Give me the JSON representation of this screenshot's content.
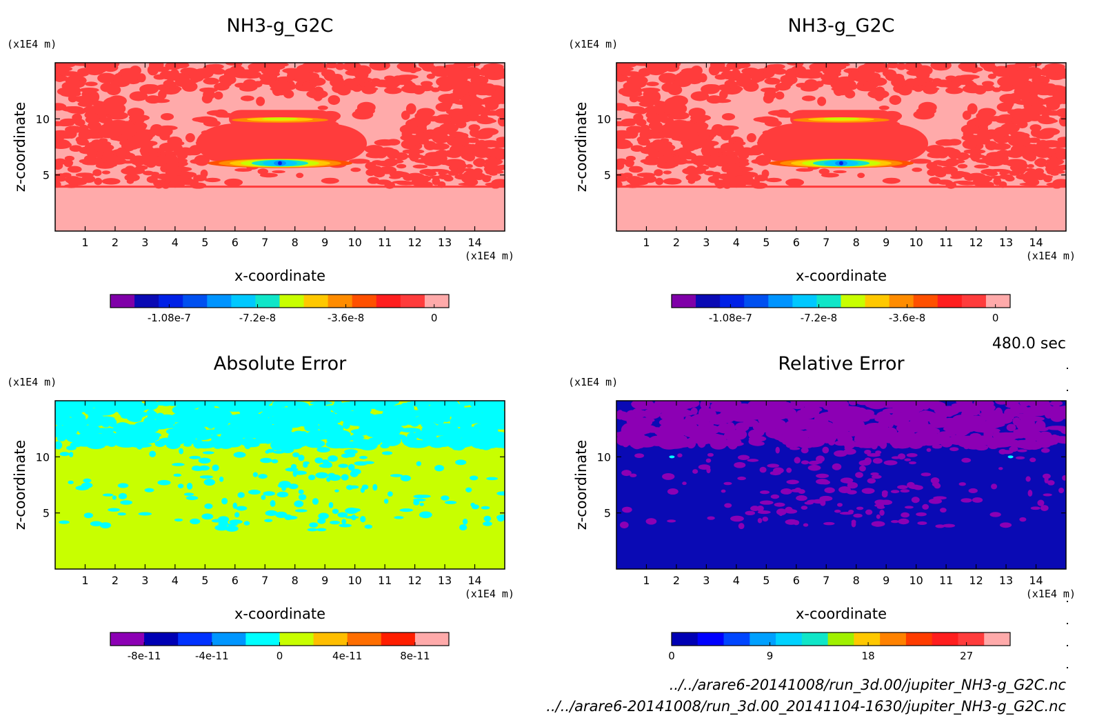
{
  "time_label": "480.0 sec",
  "files": [
    "../../arare6-20141008/run_3d.00/jupiter_NH3-g_G2C.nc",
    "../../arare6-20141008/run_3d.00_20141104-1630/jupiter_NH3-g_G2C.nc"
  ],
  "colors": {
    "ramp": [
      "#7f00a8",
      "#0000b4",
      "#0021e6",
      "#0078ff",
      "#00c3ff",
      "#10e6c8",
      "#c8ff00",
      "#ffc800",
      "#ff7d00",
      "#ff3c00",
      "#ff0f20",
      "#ff3c3c",
      "#ffa8a8"
    ]
  },
  "chart_data": [
    {
      "type": "heatmap",
      "title": "NH3-g_G2C",
      "xlabel": "x-coordinate",
      "ylabel": "z-coordinate",
      "x_unit": "(x1E4 m)",
      "y_unit": "(x1E4 m)",
      "xlim": [
        0,
        15
      ],
      "ylim": [
        0,
        15
      ],
      "x_ticks": [
        "1",
        "2",
        "3",
        "4",
        "5",
        "6",
        "7",
        "8",
        "9",
        "10",
        "11",
        "12",
        "13",
        "14"
      ],
      "y_ticks": [
        "5",
        "10"
      ],
      "colorbar": {
        "min": -1.32e-07,
        "max": 6e-09,
        "labels": [
          {
            "value": -1.08e-07,
            "text": "-1.08e-7"
          },
          {
            "value": -7.2e-08,
            "text": "-7.2e-8"
          },
          {
            "value": -3.6e-08,
            "text": "-3.6e-8"
          },
          {
            "value": 0,
            "text": "0"
          }
        ],
        "colors": [
          "#7f00a8",
          "#0a0ab4",
          "#0021e6",
          "#0050f0",
          "#0094ff",
          "#00c8ff",
          "#10e6c8",
          "#c8ff00",
          "#ffc800",
          "#ff8c00",
          "#ff5000",
          "#ff1e1e",
          "#ff3c3c",
          "#ffaaaa"
        ]
      },
      "field": "anomaly"
    },
    {
      "type": "heatmap",
      "title": "NH3-g_G2C",
      "xlabel": "x-coordinate",
      "ylabel": "z-coordinate",
      "x_unit": "(x1E4 m)",
      "y_unit": "(x1E4 m)",
      "xlim": [
        0,
        15
      ],
      "ylim": [
        0,
        15
      ],
      "x_ticks": [
        "1",
        "2",
        "3",
        "4",
        "5",
        "6",
        "7",
        "8",
        "9",
        "10",
        "11",
        "12",
        "13",
        "14"
      ],
      "y_ticks": [
        "5",
        "10"
      ],
      "colorbar": {
        "min": -1.32e-07,
        "max": 6e-09,
        "labels": [
          {
            "value": -1.08e-07,
            "text": "-1.08e-7"
          },
          {
            "value": -7.2e-08,
            "text": "-7.2e-8"
          },
          {
            "value": -3.6e-08,
            "text": "-3.6e-8"
          },
          {
            "value": 0,
            "text": "0"
          }
        ],
        "colors": [
          "#7f00a8",
          "#0a0ab4",
          "#0021e6",
          "#0050f0",
          "#0094ff",
          "#00c8ff",
          "#10e6c8",
          "#c8ff00",
          "#ffc800",
          "#ff8c00",
          "#ff5000",
          "#ff1e1e",
          "#ff3c3c",
          "#ffaaaa"
        ]
      },
      "field": "anomaly"
    },
    {
      "type": "heatmap",
      "title": "Absolute Error",
      "xlabel": "x-coordinate",
      "ylabel": "z-coordinate",
      "x_unit": "(x1E4 m)",
      "y_unit": "(x1E4 m)",
      "xlim": [
        0,
        15
      ],
      "ylim": [
        0,
        15
      ],
      "x_ticks": [
        "1",
        "2",
        "3",
        "4",
        "5",
        "6",
        "7",
        "8",
        "9",
        "10",
        "11",
        "12",
        "13",
        "14"
      ],
      "y_ticks": [
        "5",
        "10"
      ],
      "colorbar": {
        "min": -1e-10,
        "max": 1e-10,
        "labels": [
          {
            "value": -8e-11,
            "text": "-8e-11"
          },
          {
            "value": -4e-11,
            "text": "-4e-11"
          },
          {
            "value": 0,
            "text": "0"
          },
          {
            "value": 4e-11,
            "text": "4e-11"
          },
          {
            "value": 8e-11,
            "text": "8e-11"
          }
        ],
        "colors": [
          "#8c00b4",
          "#0000b4",
          "#0032ff",
          "#0096ff",
          "#00ffff",
          "#c8ff00",
          "#ffbe00",
          "#ff6e00",
          "#ff1e00",
          "#ffaaaa"
        ]
      },
      "field": "abs"
    },
    {
      "type": "heatmap",
      "title": "Relative Error",
      "xlabel": "x-coordinate",
      "ylabel": "z-coordinate",
      "x_unit": "(x1E4 m)",
      "y_unit": "(x1E4 m)",
      "xlim": [
        0,
        15
      ],
      "ylim": [
        0,
        15
      ],
      "x_ticks": [
        "1",
        "2",
        "3",
        "4",
        "5",
        "6",
        "7",
        "8",
        "9",
        "10",
        "11",
        "12",
        "13",
        "14"
      ],
      "y_ticks": [
        "5",
        "10"
      ],
      "colorbar": {
        "min": 0,
        "max": 31,
        "labels": [
          {
            "value": 0,
            "text": "0"
          },
          {
            "value": 9,
            "text": "9"
          },
          {
            "value": 18,
            "text": "18"
          },
          {
            "value": 27,
            "text": "27"
          }
        ],
        "colors": [
          "#0000b4",
          "#0000ff",
          "#0046ff",
          "#00a0ff",
          "#00d2ff",
          "#10e6c8",
          "#a0f000",
          "#ffc800",
          "#ff8200",
          "#ff3c00",
          "#ff1e1e",
          "#ff3c3c",
          "#ffaaaa"
        ]
      },
      "field": "rel"
    }
  ]
}
